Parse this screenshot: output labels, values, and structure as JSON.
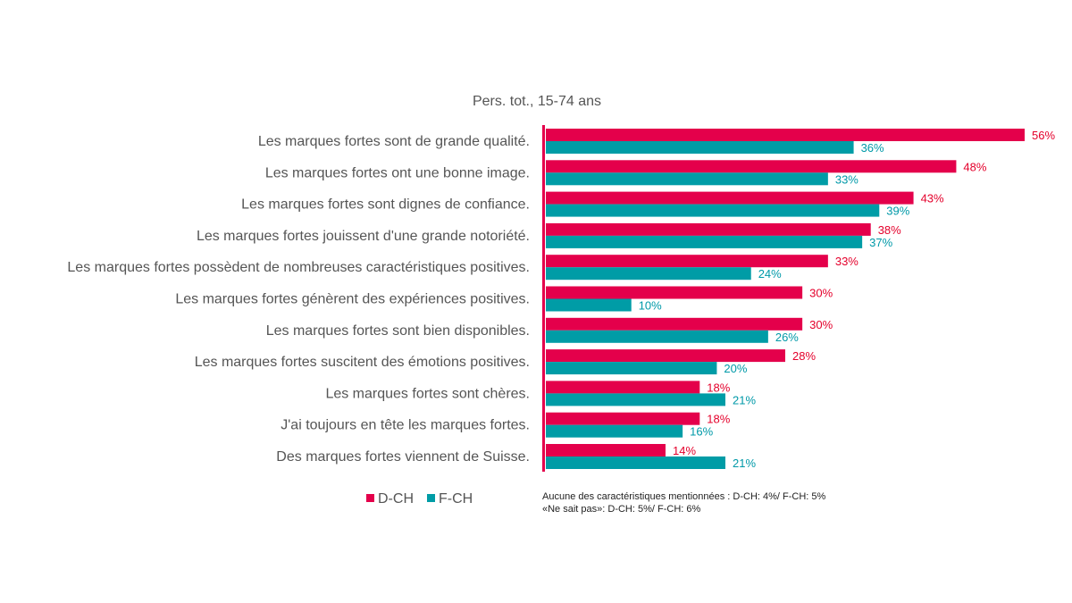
{
  "chart_data": {
    "type": "bar",
    "orientation": "horizontal",
    "subtitle": "Pers. tot., 15-74 ans",
    "categories": [
      "Les marques fortes sont de grande qualité.",
      "Les marques fortes ont une bonne image.",
      "Les marques fortes sont dignes de confiance.",
      "Les marques fortes jouissent d'une grande notoriété.",
      "Les marques fortes possèdent de nombreuses caractéristiques positives.",
      "Les marques fortes génèrent des expériences positives.",
      "Les marques fortes sont bien disponibles.",
      "Les marques fortes suscitent des émotions positives.",
      "Les marques fortes sont chères.",
      "J'ai toujours en tête les marques fortes.",
      "Des marques fortes viennent de Suisse."
    ],
    "series": [
      {
        "name": "D-CH",
        "color": "#e4004b",
        "label_color": "#e4002b",
        "values": [
          56,
          48,
          43,
          38,
          33,
          30,
          30,
          28,
          18,
          18,
          14
        ],
        "labels": [
          "56%",
          "48%",
          "43%",
          "38%",
          "33%",
          "30%",
          "30%",
          "28%",
          "18%",
          "18%",
          "14%"
        ]
      },
      {
        "name": "F-CH",
        "color": "#009ca6",
        "label_color": "#0099a8",
        "values": [
          36,
          33,
          39,
          37,
          24,
          10,
          26,
          20,
          21,
          16,
          21
        ],
        "labels": [
          "36%",
          "33%",
          "39%",
          "37%",
          "24%",
          "10%",
          "26%",
          "20%",
          "21%",
          "16%",
          "21%"
        ]
      }
    ],
    "xlim": [
      0,
      56
    ],
    "axis_color": "#e4004b",
    "legend_position": "bottom-left",
    "notes": [
      "Aucune des caractéristiques mentionnées : D-CH: 4%/ F-CH: 5%",
      "«Ne sait pas»: D-CH: 5%/ F-CH: 6%"
    ]
  }
}
